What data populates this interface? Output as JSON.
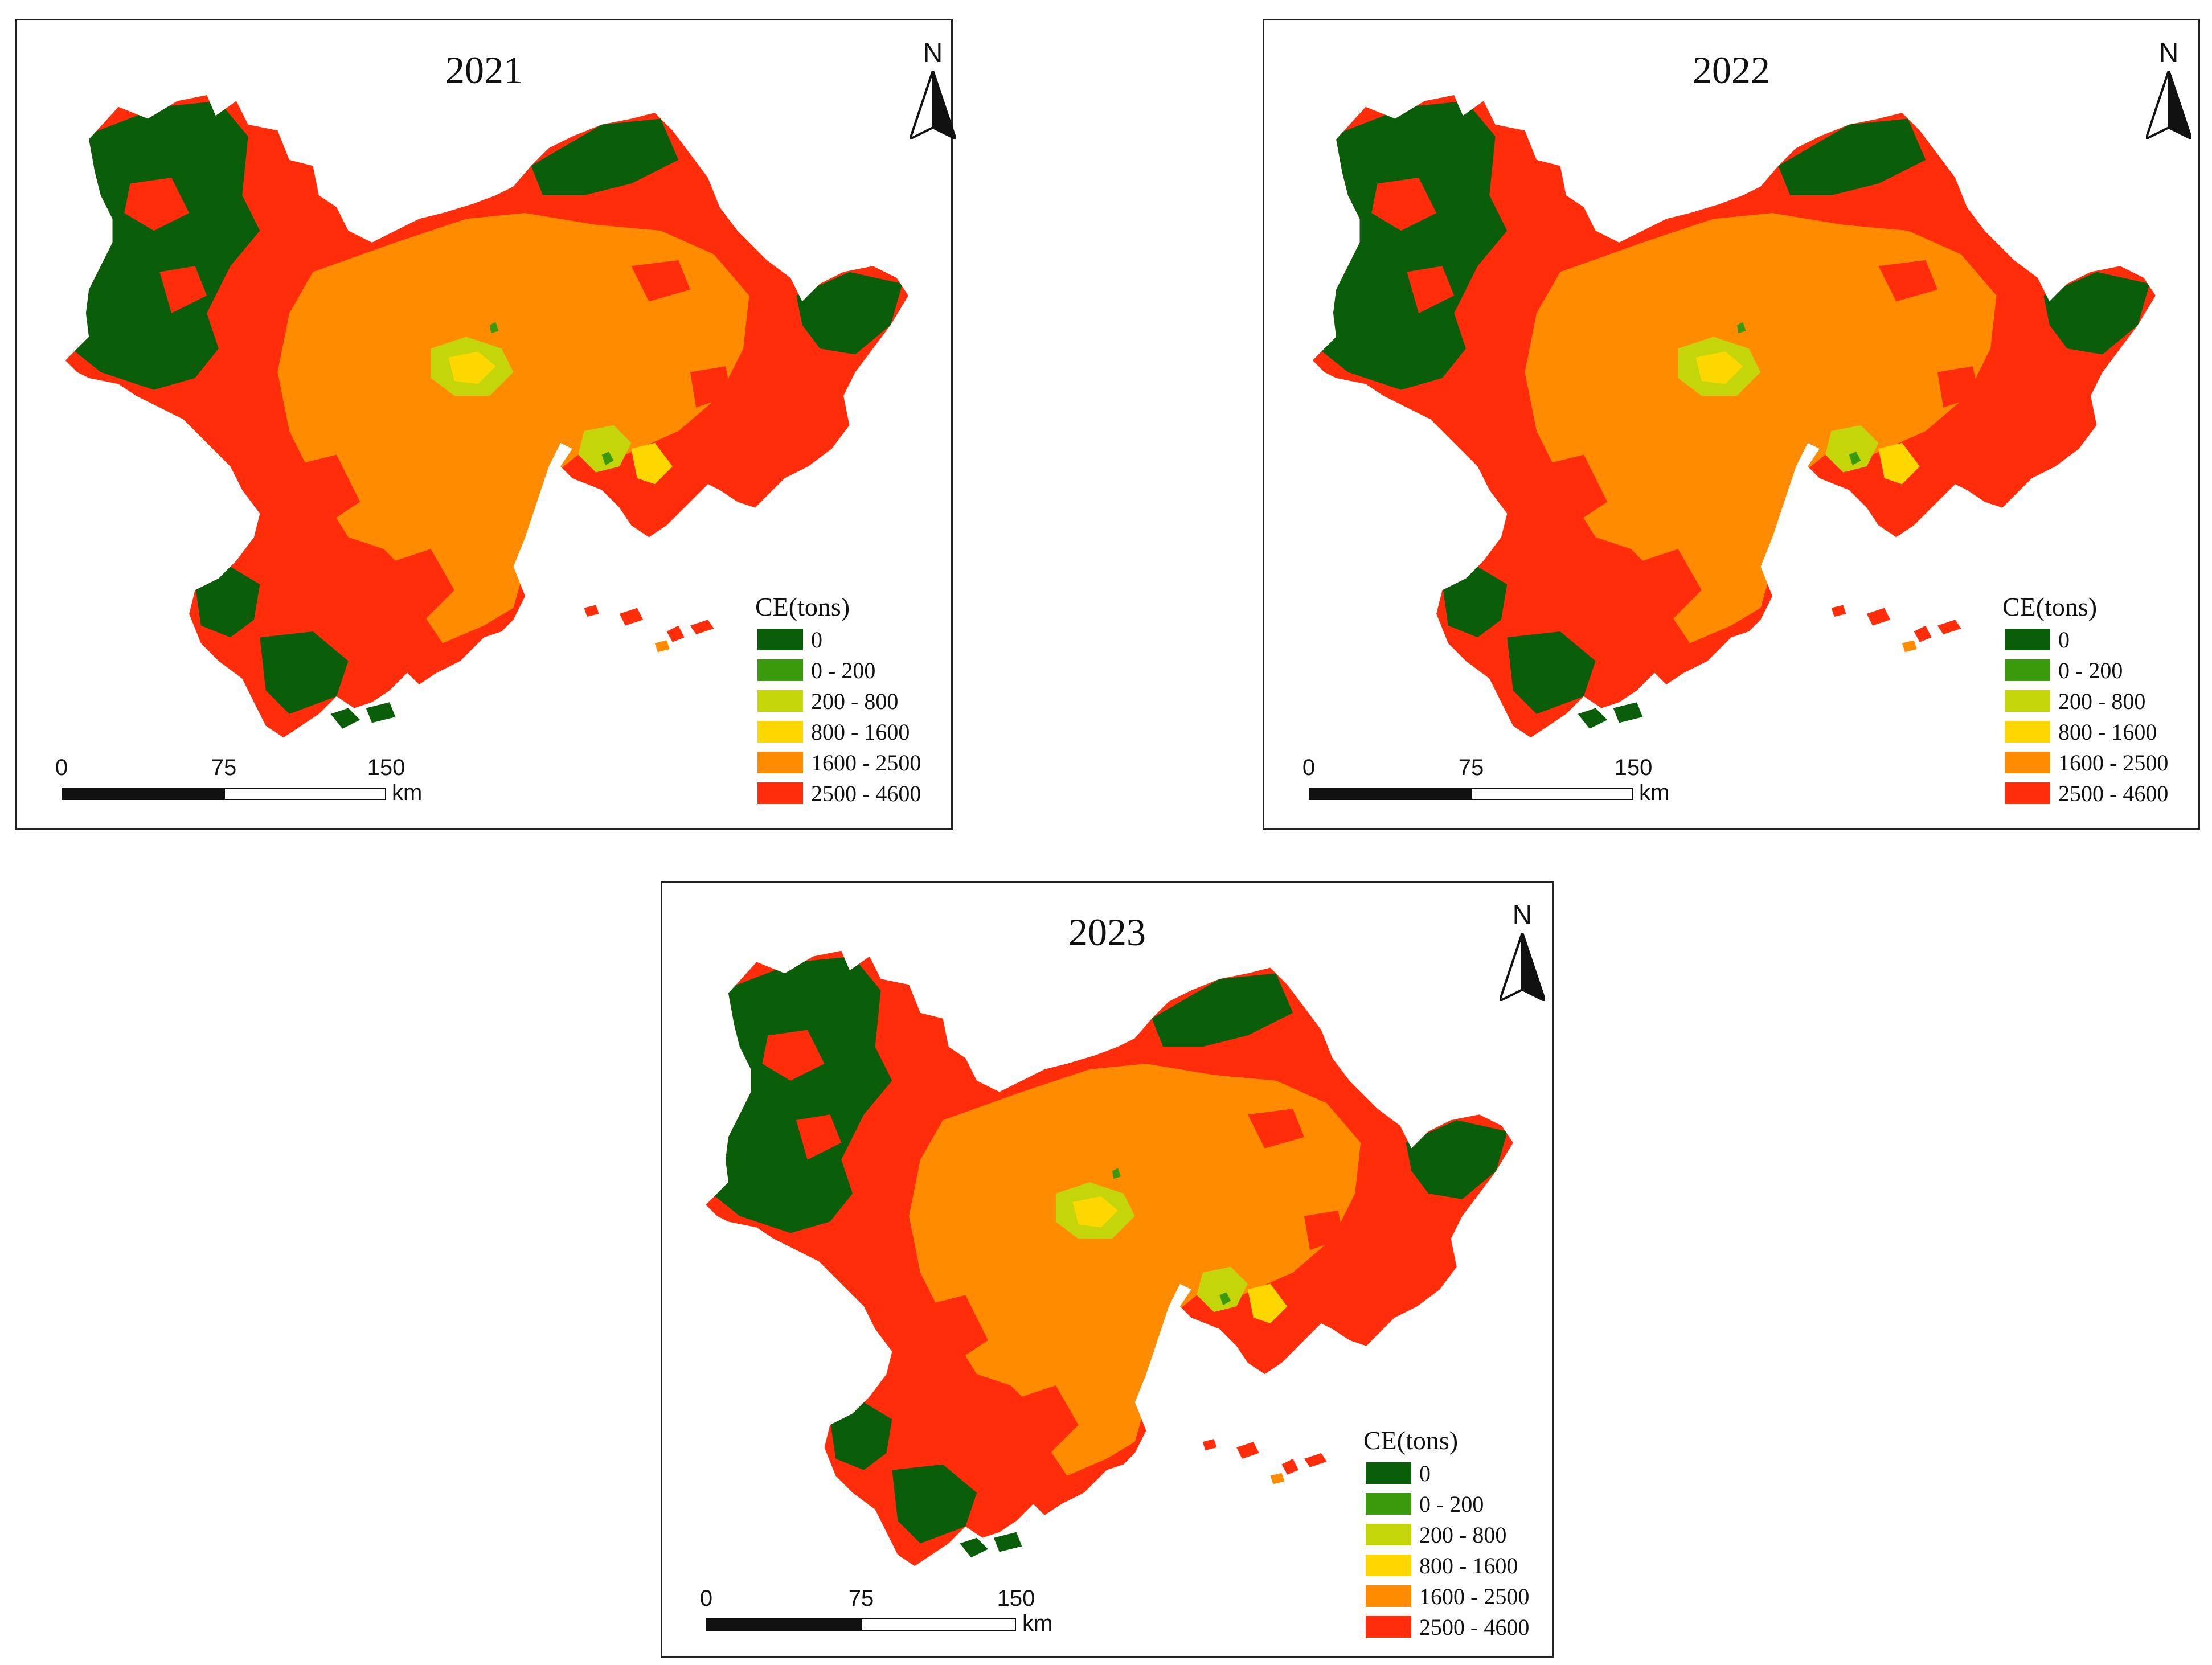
{
  "legend": {
    "title": "CE(tons)",
    "classes": [
      {
        "label": "0",
        "color": "#0a5e0a"
      },
      {
        "label": "0 - 200",
        "color": "#3a9a0c"
      },
      {
        "label": "200 - 800",
        "color": "#c4d60a"
      },
      {
        "label": "800 - 1600",
        "color": "#ffd700"
      },
      {
        "label": "1600 - 2500",
        "color": "#ff8c00"
      },
      {
        "label": "2500 - 4600",
        "color": "#ff2d0a"
      }
    ]
  },
  "north_label": "N",
  "scale": {
    "ticks": [
      "0",
      "75",
      "150"
    ],
    "unit": "km"
  },
  "panels": [
    {
      "year": "2021"
    },
    {
      "year": "2022"
    },
    {
      "year": "2023"
    }
  ]
}
